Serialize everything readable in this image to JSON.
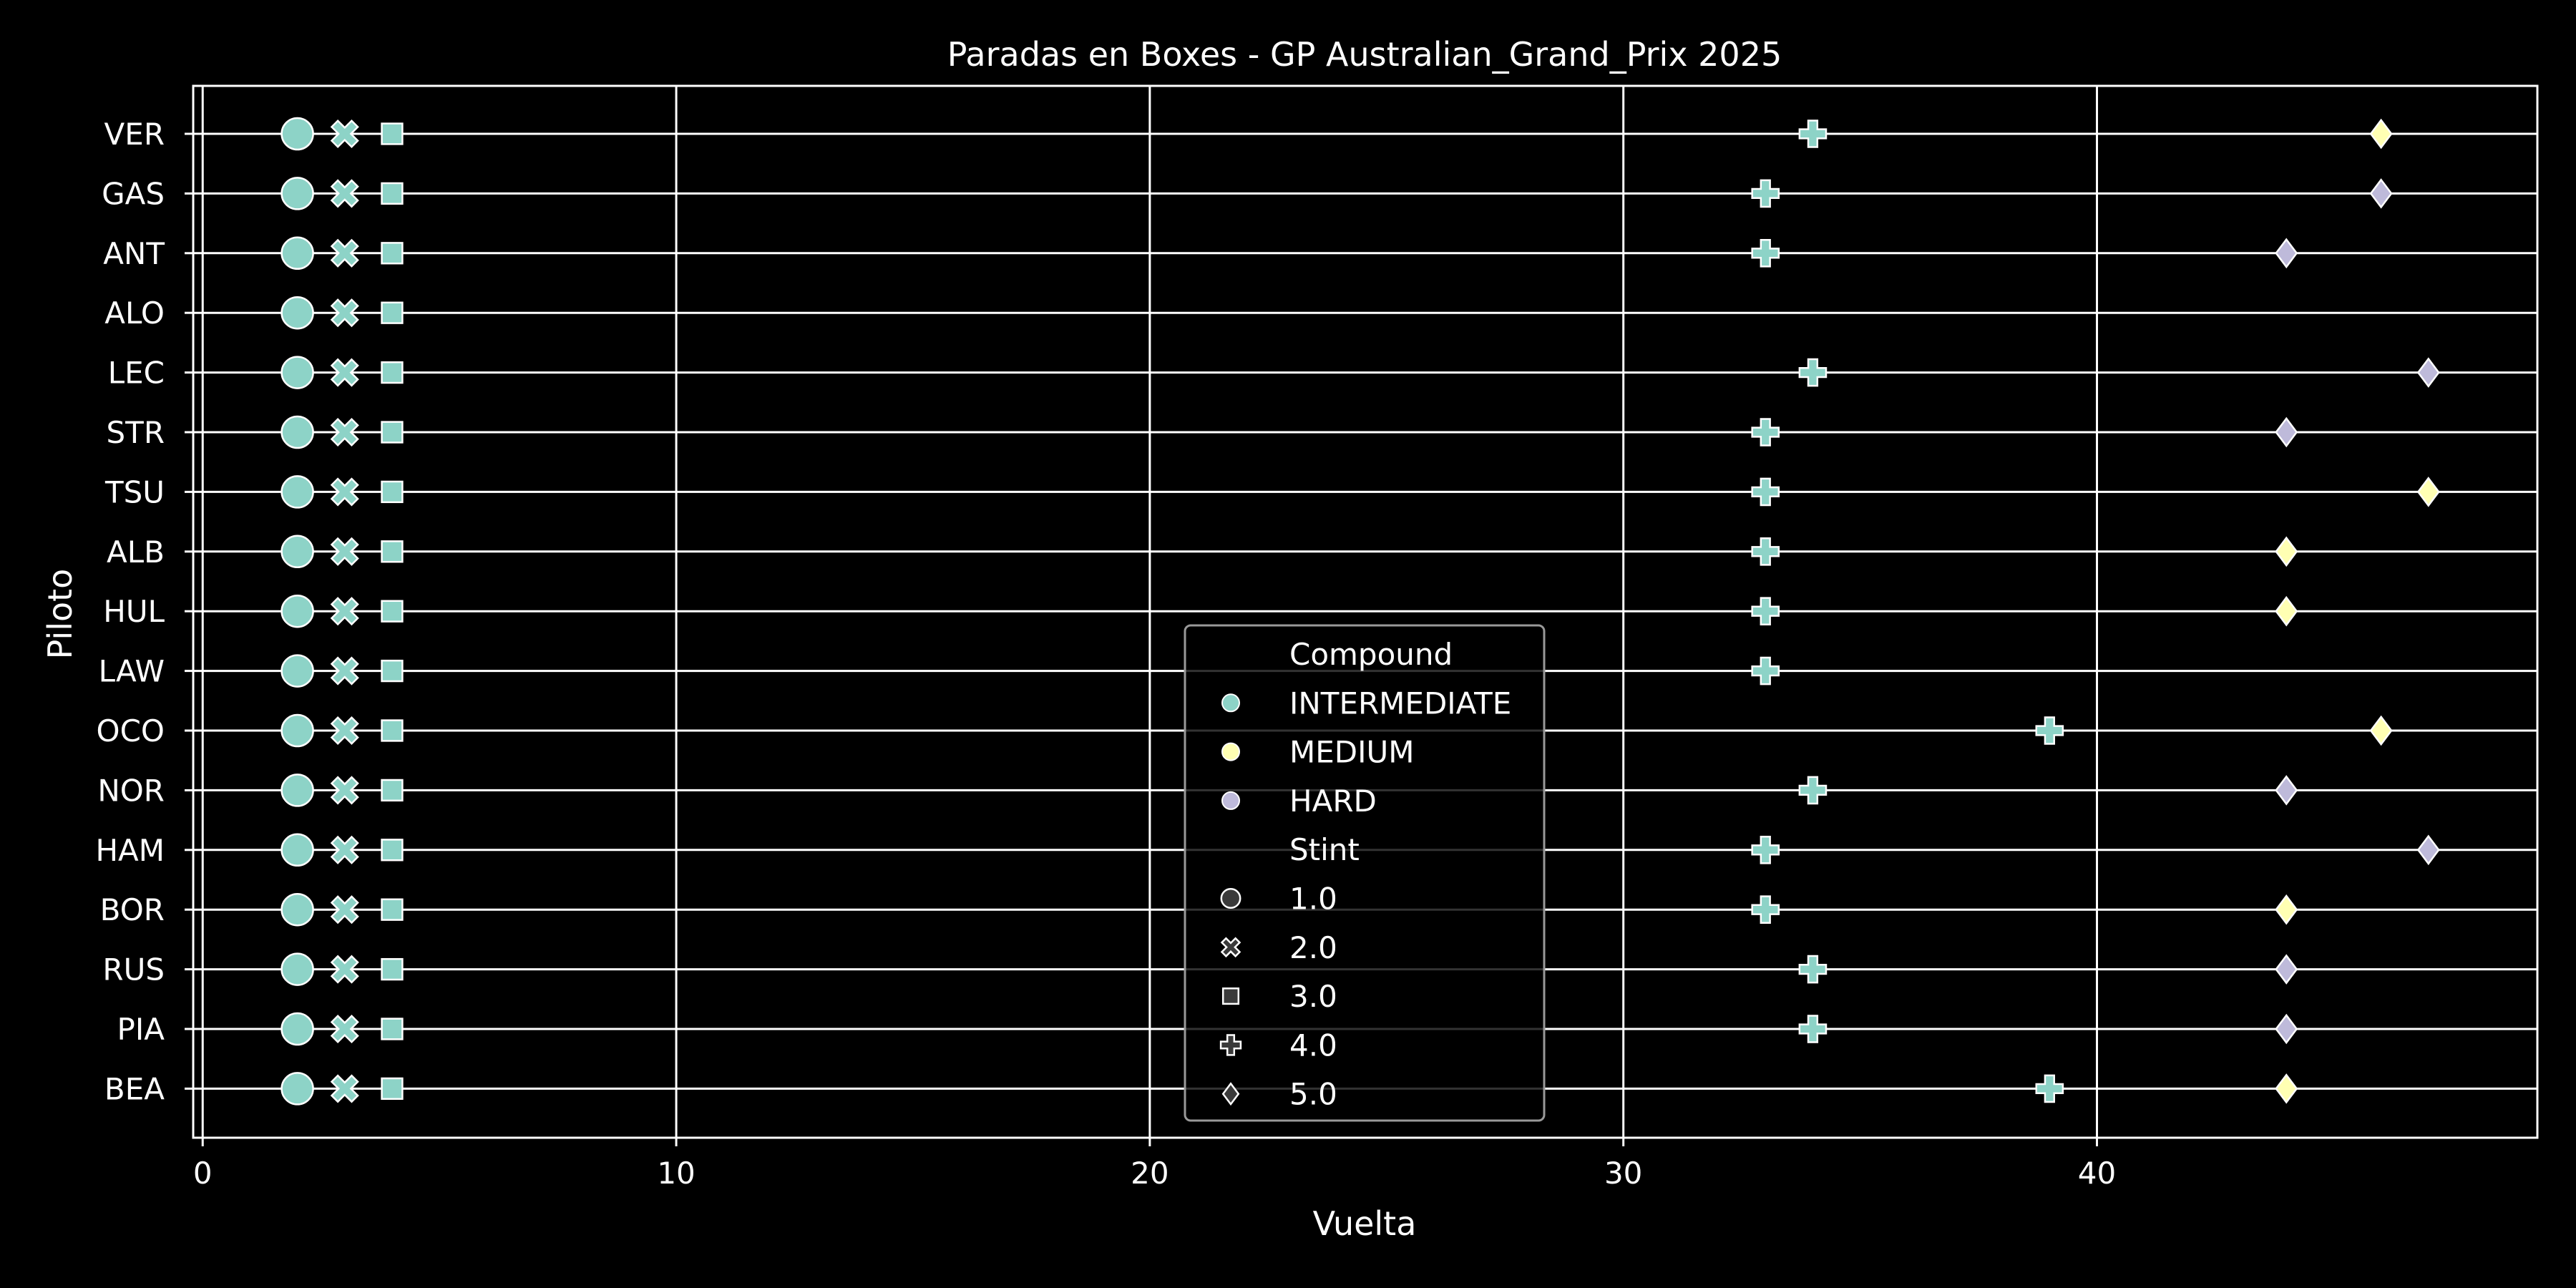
{
  "chart_data": {
    "type": "scatter",
    "title": "Paradas en Boxes - GP Australian_Grand_Prix 2025",
    "xlabel": "Vuelta",
    "ylabel": "Piloto",
    "xlim": [
      -0.2,
      49.3
    ],
    "xticks": [
      0,
      10,
      20,
      30,
      40
    ],
    "grid": true,
    "legend_position": "center",
    "drivers": [
      "VER",
      "GAS",
      "ANT",
      "ALO",
      "LEC",
      "STR",
      "TSU",
      "ALB",
      "HUL",
      "LAW",
      "OCO",
      "NOR",
      "HAM",
      "BOR",
      "RUS",
      "PIA",
      "BEA"
    ],
    "compounds": [
      {
        "name": "INTERMEDIATE",
        "color": "#8dd3c7"
      },
      {
        "name": "MEDIUM",
        "color": "#ffffb3"
      },
      {
        "name": "HARD",
        "color": "#bebada"
      }
    ],
    "stints": [
      {
        "name": "1.0",
        "marker": "circle"
      },
      {
        "name": "2.0",
        "marker": "x"
      },
      {
        "name": "3.0",
        "marker": "square"
      },
      {
        "name": "4.0",
        "marker": "plus"
      },
      {
        "name": "5.0",
        "marker": "diamond"
      }
    ],
    "points": [
      {
        "driver": "VER",
        "lap": 2,
        "compound": "INTERMEDIATE",
        "stint": 1
      },
      {
        "driver": "VER",
        "lap": 3,
        "compound": "INTERMEDIATE",
        "stint": 2
      },
      {
        "driver": "VER",
        "lap": 4,
        "compound": "INTERMEDIATE",
        "stint": 3
      },
      {
        "driver": "VER",
        "lap": 34,
        "compound": "INTERMEDIATE",
        "stint": 4
      },
      {
        "driver": "VER",
        "lap": 46,
        "compound": "MEDIUM",
        "stint": 5
      },
      {
        "driver": "GAS",
        "lap": 2,
        "compound": "INTERMEDIATE",
        "stint": 1
      },
      {
        "driver": "GAS",
        "lap": 3,
        "compound": "INTERMEDIATE",
        "stint": 2
      },
      {
        "driver": "GAS",
        "lap": 4,
        "compound": "INTERMEDIATE",
        "stint": 3
      },
      {
        "driver": "GAS",
        "lap": 33,
        "compound": "INTERMEDIATE",
        "stint": 4
      },
      {
        "driver": "GAS",
        "lap": 46,
        "compound": "HARD",
        "stint": 5
      },
      {
        "driver": "ANT",
        "lap": 2,
        "compound": "INTERMEDIATE",
        "stint": 1
      },
      {
        "driver": "ANT",
        "lap": 3,
        "compound": "INTERMEDIATE",
        "stint": 2
      },
      {
        "driver": "ANT",
        "lap": 4,
        "compound": "INTERMEDIATE",
        "stint": 3
      },
      {
        "driver": "ANT",
        "lap": 33,
        "compound": "INTERMEDIATE",
        "stint": 4
      },
      {
        "driver": "ANT",
        "lap": 44,
        "compound": "HARD",
        "stint": 5
      },
      {
        "driver": "ALO",
        "lap": 2,
        "compound": "INTERMEDIATE",
        "stint": 1
      },
      {
        "driver": "ALO",
        "lap": 3,
        "compound": "INTERMEDIATE",
        "stint": 2
      },
      {
        "driver": "ALO",
        "lap": 4,
        "compound": "INTERMEDIATE",
        "stint": 3
      },
      {
        "driver": "LEC",
        "lap": 2,
        "compound": "INTERMEDIATE",
        "stint": 1
      },
      {
        "driver": "LEC",
        "lap": 3,
        "compound": "INTERMEDIATE",
        "stint": 2
      },
      {
        "driver": "LEC",
        "lap": 4,
        "compound": "INTERMEDIATE",
        "stint": 3
      },
      {
        "driver": "LEC",
        "lap": 34,
        "compound": "INTERMEDIATE",
        "stint": 4
      },
      {
        "driver": "LEC",
        "lap": 47,
        "compound": "HARD",
        "stint": 5
      },
      {
        "driver": "STR",
        "lap": 2,
        "compound": "INTERMEDIATE",
        "stint": 1
      },
      {
        "driver": "STR",
        "lap": 3,
        "compound": "INTERMEDIATE",
        "stint": 2
      },
      {
        "driver": "STR",
        "lap": 4,
        "compound": "INTERMEDIATE",
        "stint": 3
      },
      {
        "driver": "STR",
        "lap": 33,
        "compound": "INTERMEDIATE",
        "stint": 4
      },
      {
        "driver": "STR",
        "lap": 44,
        "compound": "HARD",
        "stint": 5
      },
      {
        "driver": "TSU",
        "lap": 2,
        "compound": "INTERMEDIATE",
        "stint": 1
      },
      {
        "driver": "TSU",
        "lap": 3,
        "compound": "INTERMEDIATE",
        "stint": 2
      },
      {
        "driver": "TSU",
        "lap": 4,
        "compound": "INTERMEDIATE",
        "stint": 3
      },
      {
        "driver": "TSU",
        "lap": 33,
        "compound": "INTERMEDIATE",
        "stint": 4
      },
      {
        "driver": "TSU",
        "lap": 47,
        "compound": "MEDIUM",
        "stint": 5
      },
      {
        "driver": "ALB",
        "lap": 2,
        "compound": "INTERMEDIATE",
        "stint": 1
      },
      {
        "driver": "ALB",
        "lap": 3,
        "compound": "INTERMEDIATE",
        "stint": 2
      },
      {
        "driver": "ALB",
        "lap": 4,
        "compound": "INTERMEDIATE",
        "stint": 3
      },
      {
        "driver": "ALB",
        "lap": 33,
        "compound": "INTERMEDIATE",
        "stint": 4
      },
      {
        "driver": "ALB",
        "lap": 44,
        "compound": "MEDIUM",
        "stint": 5
      },
      {
        "driver": "HUL",
        "lap": 2,
        "compound": "INTERMEDIATE",
        "stint": 1
      },
      {
        "driver": "HUL",
        "lap": 3,
        "compound": "INTERMEDIATE",
        "stint": 2
      },
      {
        "driver": "HUL",
        "lap": 4,
        "compound": "INTERMEDIATE",
        "stint": 3
      },
      {
        "driver": "HUL",
        "lap": 33,
        "compound": "INTERMEDIATE",
        "stint": 4
      },
      {
        "driver": "HUL",
        "lap": 44,
        "compound": "MEDIUM",
        "stint": 5
      },
      {
        "driver": "LAW",
        "lap": 2,
        "compound": "INTERMEDIATE",
        "stint": 1
      },
      {
        "driver": "LAW",
        "lap": 3,
        "compound": "INTERMEDIATE",
        "stint": 2
      },
      {
        "driver": "LAW",
        "lap": 4,
        "compound": "INTERMEDIATE",
        "stint": 3
      },
      {
        "driver": "LAW",
        "lap": 33,
        "compound": "INTERMEDIATE",
        "stint": 4
      },
      {
        "driver": "OCO",
        "lap": 2,
        "compound": "INTERMEDIATE",
        "stint": 1
      },
      {
        "driver": "OCO",
        "lap": 3,
        "compound": "INTERMEDIATE",
        "stint": 2
      },
      {
        "driver": "OCO",
        "lap": 4,
        "compound": "INTERMEDIATE",
        "stint": 3
      },
      {
        "driver": "OCO",
        "lap": 39,
        "compound": "INTERMEDIATE",
        "stint": 4
      },
      {
        "driver": "OCO",
        "lap": 46,
        "compound": "MEDIUM",
        "stint": 5
      },
      {
        "driver": "NOR",
        "lap": 2,
        "compound": "INTERMEDIATE",
        "stint": 1
      },
      {
        "driver": "NOR",
        "lap": 3,
        "compound": "INTERMEDIATE",
        "stint": 2
      },
      {
        "driver": "NOR",
        "lap": 4,
        "compound": "INTERMEDIATE",
        "stint": 3
      },
      {
        "driver": "NOR",
        "lap": 34,
        "compound": "INTERMEDIATE",
        "stint": 4
      },
      {
        "driver": "NOR",
        "lap": 44,
        "compound": "HARD",
        "stint": 5
      },
      {
        "driver": "HAM",
        "lap": 2,
        "compound": "INTERMEDIATE",
        "stint": 1
      },
      {
        "driver": "HAM",
        "lap": 3,
        "compound": "INTERMEDIATE",
        "stint": 2
      },
      {
        "driver": "HAM",
        "lap": 4,
        "compound": "INTERMEDIATE",
        "stint": 3
      },
      {
        "driver": "HAM",
        "lap": 33,
        "compound": "INTERMEDIATE",
        "stint": 4
      },
      {
        "driver": "HAM",
        "lap": 47,
        "compound": "HARD",
        "stint": 5
      },
      {
        "driver": "BOR",
        "lap": 2,
        "compound": "INTERMEDIATE",
        "stint": 1
      },
      {
        "driver": "BOR",
        "lap": 3,
        "compound": "INTERMEDIATE",
        "stint": 2
      },
      {
        "driver": "BOR",
        "lap": 4,
        "compound": "INTERMEDIATE",
        "stint": 3
      },
      {
        "driver": "BOR",
        "lap": 33,
        "compound": "INTERMEDIATE",
        "stint": 4
      },
      {
        "driver": "BOR",
        "lap": 44,
        "compound": "MEDIUM",
        "stint": 5
      },
      {
        "driver": "RUS",
        "lap": 2,
        "compound": "INTERMEDIATE",
        "stint": 1
      },
      {
        "driver": "RUS",
        "lap": 3,
        "compound": "INTERMEDIATE",
        "stint": 2
      },
      {
        "driver": "RUS",
        "lap": 4,
        "compound": "INTERMEDIATE",
        "stint": 3
      },
      {
        "driver": "RUS",
        "lap": 34,
        "compound": "INTERMEDIATE",
        "stint": 4
      },
      {
        "driver": "RUS",
        "lap": 44,
        "compound": "HARD",
        "stint": 5
      },
      {
        "driver": "PIA",
        "lap": 2,
        "compound": "INTERMEDIATE",
        "stint": 1
      },
      {
        "driver": "PIA",
        "lap": 3,
        "compound": "INTERMEDIATE",
        "stint": 2
      },
      {
        "driver": "PIA",
        "lap": 4,
        "compound": "INTERMEDIATE",
        "stint": 3
      },
      {
        "driver": "PIA",
        "lap": 34,
        "compound": "INTERMEDIATE",
        "stint": 4
      },
      {
        "driver": "PIA",
        "lap": 44,
        "compound": "HARD",
        "stint": 5
      },
      {
        "driver": "BEA",
        "lap": 2,
        "compound": "INTERMEDIATE",
        "stint": 1
      },
      {
        "driver": "BEA",
        "lap": 3,
        "compound": "INTERMEDIATE",
        "stint": 2
      },
      {
        "driver": "BEA",
        "lap": 4,
        "compound": "INTERMEDIATE",
        "stint": 3
      },
      {
        "driver": "BEA",
        "lap": 39,
        "compound": "INTERMEDIATE",
        "stint": 4
      },
      {
        "driver": "BEA",
        "lap": 44,
        "compound": "MEDIUM",
        "stint": 5
      }
    ]
  },
  "legend": {
    "compound_title": "Compound",
    "stint_title": "Stint"
  }
}
